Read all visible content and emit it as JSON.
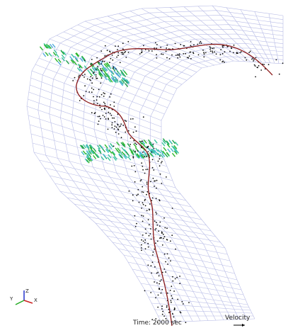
{
  "time_label": "Time: 2000 sec",
  "legend": {
    "label": "Velocity"
  },
  "axes": {
    "x": "X",
    "y": "Y",
    "z": "Z"
  }
}
